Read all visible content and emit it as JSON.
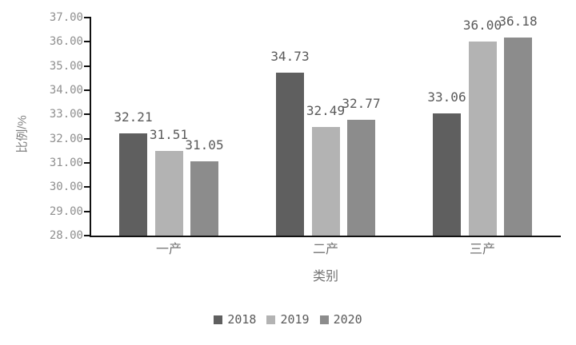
{
  "chart_data": {
    "type": "bar",
    "title": "",
    "categories": [
      "一产",
      "二产",
      "三产"
    ],
    "series": [
      {
        "name": "2018",
        "color": "#5f5f5f",
        "values": [
          32.21,
          34.73,
          33.06
        ]
      },
      {
        "name": "2019",
        "color": "#b3b3b3",
        "values": [
          31.51,
          32.49,
          36.0
        ]
      },
      {
        "name": "2020",
        "color": "#8c8c8c",
        "values": [
          31.05,
          32.77,
          36.18
        ]
      }
    ],
    "value_labels": [
      [
        "32.21",
        "34.73",
        "33.06"
      ],
      [
        "31.51",
        "32.49",
        "36.00"
      ],
      [
        "31.05",
        "32.77",
        "36.18"
      ]
    ],
    "xlabel": "类别",
    "ylabel": "比例/%",
    "ylim": [
      28,
      37
    ],
    "ytick_step": 1,
    "ytick_labels": [
      "28.00",
      "29.00",
      "30.00",
      "31.00",
      "32.00",
      "33.00",
      "34.00",
      "35.00",
      "36.00",
      "37.00"
    ],
    "grid": false,
    "legend_position": "bottom",
    "legend_entries": [
      "2018",
      "2019",
      "2020"
    ],
    "axis_color": "#111111",
    "tick_label_color": "#8f8f8f",
    "value_label_color": "#595959"
  }
}
